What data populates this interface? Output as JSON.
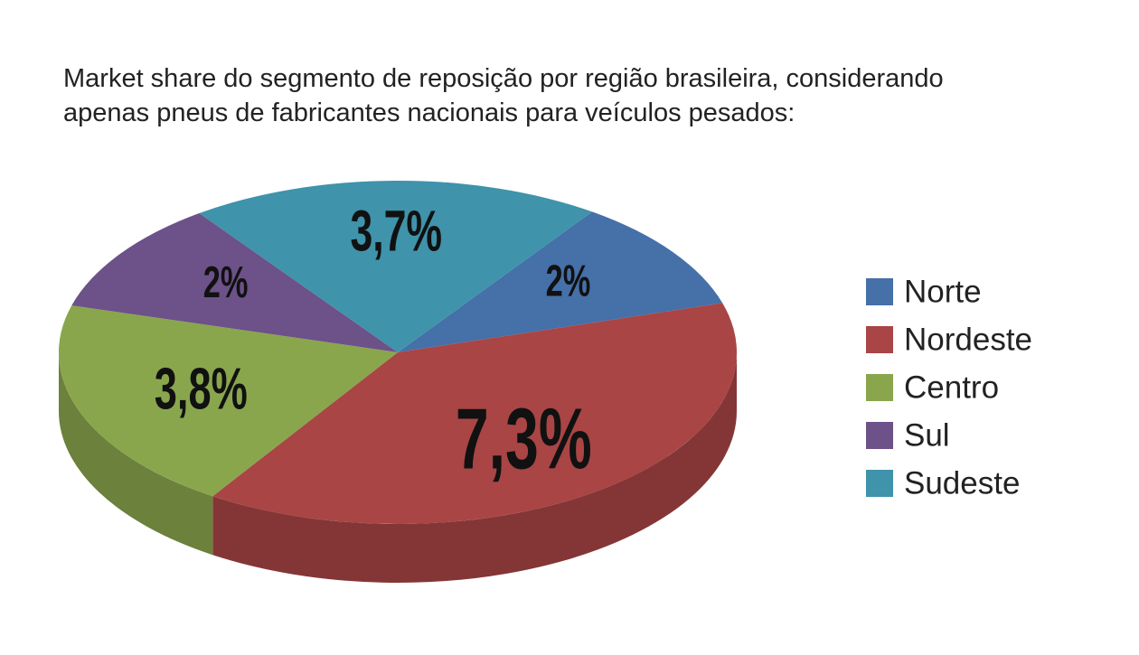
{
  "chart_data": {
    "type": "pie3d",
    "title": "Market share do segmento de reposição por região brasileira, considerando apenas pneus de fabricantes nacionais para veículos pesados:",
    "categories": [
      "Norte",
      "Nordeste",
      "Centro",
      "Sul",
      "Sudeste"
    ],
    "values": [
      2,
      7.3,
      3.8,
      2,
      3.7
    ],
    "value_labels": [
      "2%",
      "7,3%",
      "3,8%",
      "2%",
      "3,7%"
    ],
    "colors": [
      "#4570a8",
      "#a94545",
      "#89a64d",
      "#6d5189",
      "#3f93ab"
    ],
    "legend": "right"
  }
}
